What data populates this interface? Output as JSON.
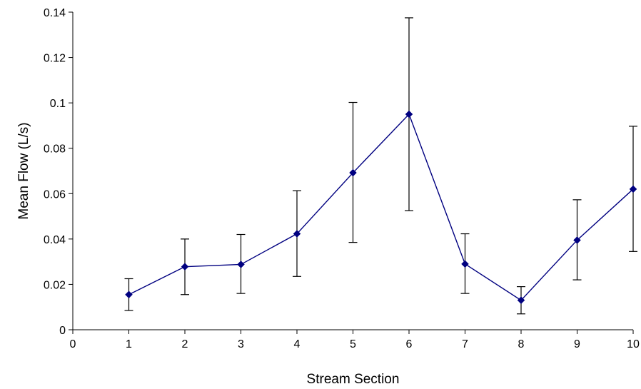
{
  "chart_data": {
    "type": "line",
    "title": "",
    "xlabel": "Stream Section",
    "ylabel": "Mean Flow (L/s)",
    "xlim": [
      0,
      10
    ],
    "ylim": [
      0,
      0.14
    ],
    "x_ticks": [
      0,
      1,
      2,
      3,
      4,
      5,
      6,
      7,
      8,
      9,
      10
    ],
    "y_ticks": [
      0,
      0.02,
      0.04,
      0.06,
      0.08,
      0.1,
      0.12,
      0.14
    ],
    "x_tick_labels": [
      "0",
      "1",
      "2",
      "3",
      "4",
      "5",
      "6",
      "7",
      "8",
      "9",
      "10"
    ],
    "y_tick_labels": [
      "0",
      "0.02",
      "0.04",
      "0.06",
      "0.08",
      "0.1",
      "0.12",
      "0.14"
    ],
    "grid": false,
    "legend": "none",
    "series": [
      {
        "color": "#000080",
        "marker": "diamond",
        "x": [
          1,
          2,
          3,
          4,
          5,
          6,
          7,
          8,
          9,
          10
        ],
        "y": [
          0.0155,
          0.0278,
          0.0288,
          0.0423,
          0.0692,
          0.095,
          0.029,
          0.013,
          0.0395,
          0.062
        ],
        "error_upper": [
          0.0225,
          0.04,
          0.042,
          0.0613,
          0.1002,
          0.1375,
          0.0423,
          0.019,
          0.0573,
          0.0897
        ],
        "error_lower": [
          0.0085,
          0.0155,
          0.016,
          0.0235,
          0.0385,
          0.0525,
          0.016,
          0.007,
          0.022,
          0.0345
        ]
      }
    ],
    "errorbar_color": "#000000"
  }
}
